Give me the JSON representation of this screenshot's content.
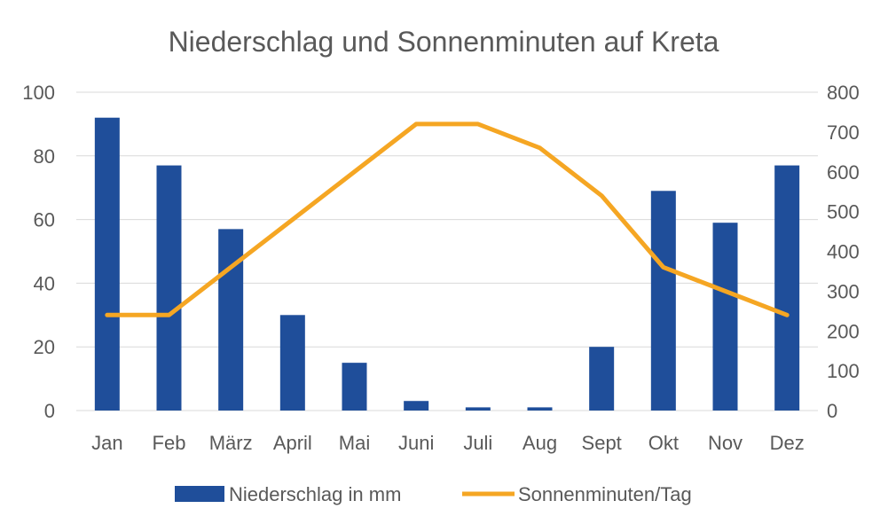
{
  "chart_data": {
    "type": "bar",
    "title": "Niederschlag und Sonnenminuten auf Kreta",
    "categories": [
      "Jan",
      "Feb",
      "März",
      "April",
      "Mai",
      "Juni",
      "Juli",
      "Aug",
      "Sept",
      "Okt",
      "Nov",
      "Dez"
    ],
    "series": [
      {
        "name": "Niederschlag in mm",
        "type": "bar",
        "axis": "left",
        "color": "#1F4E9A",
        "values": [
          92,
          77,
          57,
          30,
          15,
          3,
          1,
          1,
          20,
          69,
          59,
          77
        ]
      },
      {
        "name": "Sonnenminuten/Tag",
        "type": "line",
        "axis": "right",
        "color": "#F5A623",
        "values": [
          240,
          240,
          360,
          480,
          600,
          720,
          720,
          660,
          540,
          360,
          300,
          240
        ]
      }
    ],
    "y_left": {
      "min": 0,
      "max": 100,
      "ticks": [
        0,
        20,
        40,
        60,
        80,
        100
      ]
    },
    "y_right": {
      "min": 0,
      "max": 800,
      "ticks": [
        0,
        100,
        200,
        300,
        400,
        500,
        600,
        700,
        800
      ]
    },
    "grid": true,
    "legend_position": "bottom"
  }
}
